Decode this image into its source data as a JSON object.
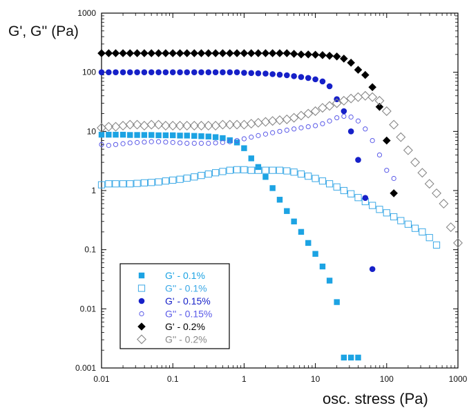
{
  "chart_data": {
    "type": "scatter",
    "title": "",
    "xlabel": "osc. stress (Pa)",
    "ylabel": "G', G'' (Pa)",
    "x_scale": "log",
    "y_scale": "log",
    "xlim": [
      0.01,
      1000
    ],
    "ylim": [
      0.001,
      1000
    ],
    "x_ticks": [
      "0.01",
      "0.1",
      "1",
      "10",
      "100",
      "1000"
    ],
    "y_ticks": [
      "0.001",
      "0.01",
      "0.1",
      "1",
      "10",
      "100",
      "1000"
    ],
    "grid": false,
    "legend_position": "bottom-left",
    "series": [
      {
        "name": "G' - 0.1%",
        "marker": "square",
        "filled": true,
        "color": "#1ca3e3",
        "x": [
          0.01,
          0.0126,
          0.0158,
          0.02,
          0.0251,
          0.0316,
          0.0398,
          0.0501,
          0.0631,
          0.0794,
          0.1,
          0.126,
          0.158,
          0.2,
          0.251,
          0.316,
          0.398,
          0.501,
          0.631,
          0.794,
          1,
          1.26,
          1.58,
          2,
          2.51,
          3.16,
          3.98,
          5.01,
          6.31,
          7.94,
          10,
          12.6,
          15.8,
          20,
          25.1,
          31.6,
          39.8
        ],
        "y": [
          8.8,
          8.8,
          8.8,
          8.8,
          8.7,
          8.7,
          8.7,
          8.7,
          8.6,
          8.6,
          8.6,
          8.5,
          8.5,
          8.4,
          8.3,
          8.2,
          8,
          7.7,
          7.1,
          6.5,
          5.2,
          3.5,
          2.5,
          1.7,
          1.1,
          0.7,
          0.45,
          0.3,
          0.2,
          0.13,
          0.085,
          0.052,
          0.03,
          0.013,
          0.0015,
          0.0015,
          0.0015
        ]
      },
      {
        "name": "G'' - 0.1%",
        "marker": "square",
        "filled": false,
        "color": "#3aa8e6",
        "x": [
          0.01,
          0.0126,
          0.0158,
          0.02,
          0.0251,
          0.0316,
          0.0398,
          0.0501,
          0.0631,
          0.0794,
          0.1,
          0.126,
          0.158,
          0.2,
          0.251,
          0.316,
          0.398,
          0.501,
          0.631,
          0.794,
          1,
          1.26,
          1.58,
          2,
          2.51,
          3.16,
          3.98,
          5.01,
          6.31,
          7.94,
          10,
          12.6,
          15.8,
          20,
          25.1,
          31.6,
          39.8,
          50.1,
          63.1,
          79.4,
          100,
          126,
          158,
          200,
          251,
          316,
          398,
          501
        ],
        "y": [
          1.25,
          1.3,
          1.3,
          1.3,
          1.3,
          1.32,
          1.35,
          1.37,
          1.4,
          1.45,
          1.5,
          1.55,
          1.62,
          1.7,
          1.8,
          1.9,
          2,
          2.1,
          2.2,
          2.25,
          2.25,
          2.2,
          2.2,
          2.2,
          2.2,
          2.2,
          2.15,
          2.05,
          1.9,
          1.75,
          1.6,
          1.45,
          1.3,
          1.15,
          1,
          0.88,
          0.76,
          0.65,
          0.56,
          0.48,
          0.42,
          0.36,
          0.31,
          0.27,
          0.23,
          0.2,
          0.16,
          0.12
        ]
      },
      {
        "name": "G' - 0.15%",
        "marker": "circle",
        "filled": true,
        "color": "#1620c8",
        "x": [
          0.01,
          0.0126,
          0.0158,
          0.02,
          0.0251,
          0.0316,
          0.0398,
          0.0501,
          0.0631,
          0.0794,
          0.1,
          0.126,
          0.158,
          0.2,
          0.251,
          0.316,
          0.398,
          0.501,
          0.631,
          0.794,
          1,
          1.26,
          1.58,
          2,
          2.51,
          3.16,
          3.98,
          5.01,
          6.31,
          7.94,
          10,
          12.6,
          15.8,
          20,
          25.1,
          31.6,
          39.8,
          50.1,
          63.1
        ],
        "y": [
          100,
          100,
          100,
          100,
          100,
          100,
          100,
          100,
          100,
          100,
          100,
          100,
          100,
          100,
          100,
          100,
          100,
          100,
          100,
          100,
          98,
          97,
          96,
          95,
          93,
          91,
          89,
          86,
          83,
          80,
          76,
          70,
          58,
          35,
          22,
          10,
          3.3,
          0.75,
          0.047
        ]
      },
      {
        "name": "G'' - 0.15%",
        "marker": "circle",
        "filled": false,
        "color": "#5a5ae8",
        "x": [
          0.01,
          0.0126,
          0.0158,
          0.02,
          0.0251,
          0.0316,
          0.0398,
          0.0501,
          0.0631,
          0.0794,
          0.1,
          0.126,
          0.158,
          0.2,
          0.251,
          0.316,
          0.398,
          0.501,
          0.631,
          0.794,
          1,
          1.26,
          1.58,
          2,
          2.51,
          3.16,
          3.98,
          5.01,
          6.31,
          7.94,
          10,
          12.6,
          15.8,
          20,
          25.1,
          31.6,
          39.8,
          50.1,
          63.1,
          79.4,
          100,
          126
        ],
        "y": [
          6,
          5.8,
          6,
          6.2,
          6.4,
          6.5,
          6.6,
          6.7,
          6.7,
          6.6,
          6.5,
          6.4,
          6.3,
          6.3,
          6.3,
          6.3,
          6.4,
          6.5,
          6.7,
          7,
          7.5,
          8,
          8.5,
          9,
          9.5,
          10,
          10.5,
          11,
          11.5,
          12,
          12.5,
          13.5,
          15,
          17,
          18,
          17.5,
          15,
          11,
          7,
          4,
          2.2,
          1.6
        ]
      },
      {
        "name": "G' - 0.2%",
        "marker": "diamond",
        "filled": true,
        "color": "#000000",
        "x": [
          0.01,
          0.0126,
          0.0158,
          0.02,
          0.0251,
          0.0316,
          0.0398,
          0.0501,
          0.0631,
          0.0794,
          0.1,
          0.126,
          0.158,
          0.2,
          0.251,
          0.316,
          0.398,
          0.501,
          0.631,
          0.794,
          1,
          1.26,
          1.58,
          2,
          2.51,
          3.16,
          3.98,
          5.01,
          6.31,
          7.94,
          10,
          12.6,
          15.8,
          20,
          25.1,
          31.6,
          39.8,
          50.1,
          63.1,
          79.4,
          100,
          126
        ],
        "y": [
          210,
          210,
          210,
          210,
          210,
          210,
          210,
          210,
          210,
          210,
          210,
          210,
          210,
          210,
          210,
          210,
          210,
          210,
          210,
          210,
          210,
          210,
          210,
          210,
          210,
          210,
          210,
          205,
          200,
          200,
          198,
          195,
          190,
          185,
          170,
          145,
          110,
          90,
          56,
          26,
          7,
          0.9
        ]
      },
      {
        "name": "G'' - 0.2%",
        "marker": "diamond",
        "filled": false,
        "color": "#888888",
        "x": [
          0.01,
          0.0126,
          0.0158,
          0.02,
          0.0251,
          0.0316,
          0.0398,
          0.0501,
          0.0631,
          0.0794,
          0.1,
          0.126,
          0.158,
          0.2,
          0.251,
          0.316,
          0.398,
          0.501,
          0.631,
          0.794,
          1,
          1.26,
          1.58,
          2,
          2.51,
          3.16,
          3.98,
          5.01,
          6.31,
          7.94,
          10,
          12.6,
          15.8,
          20,
          25.1,
          31.6,
          39.8,
          50.1,
          63.1,
          79.4,
          100,
          126,
          158,
          200,
          251,
          316,
          398,
          501,
          631,
          794,
          1000
        ],
        "y": [
          11.5,
          12,
          12,
          12.5,
          13,
          13,
          12.5,
          13,
          13,
          12.5,
          12.5,
          12.5,
          12.5,
          12.5,
          12.5,
          12.5,
          12.5,
          13,
          13,
          13,
          13,
          13.5,
          14,
          14.5,
          15,
          15.5,
          16,
          17,
          18.5,
          20,
          22,
          25,
          27,
          30,
          33,
          36,
          38,
          40,
          38,
          33,
          22,
          13,
          8,
          4.8,
          3,
          2,
          1.3,
          0.9,
          0.6,
          0.24,
          0.13
        ]
      }
    ]
  }
}
